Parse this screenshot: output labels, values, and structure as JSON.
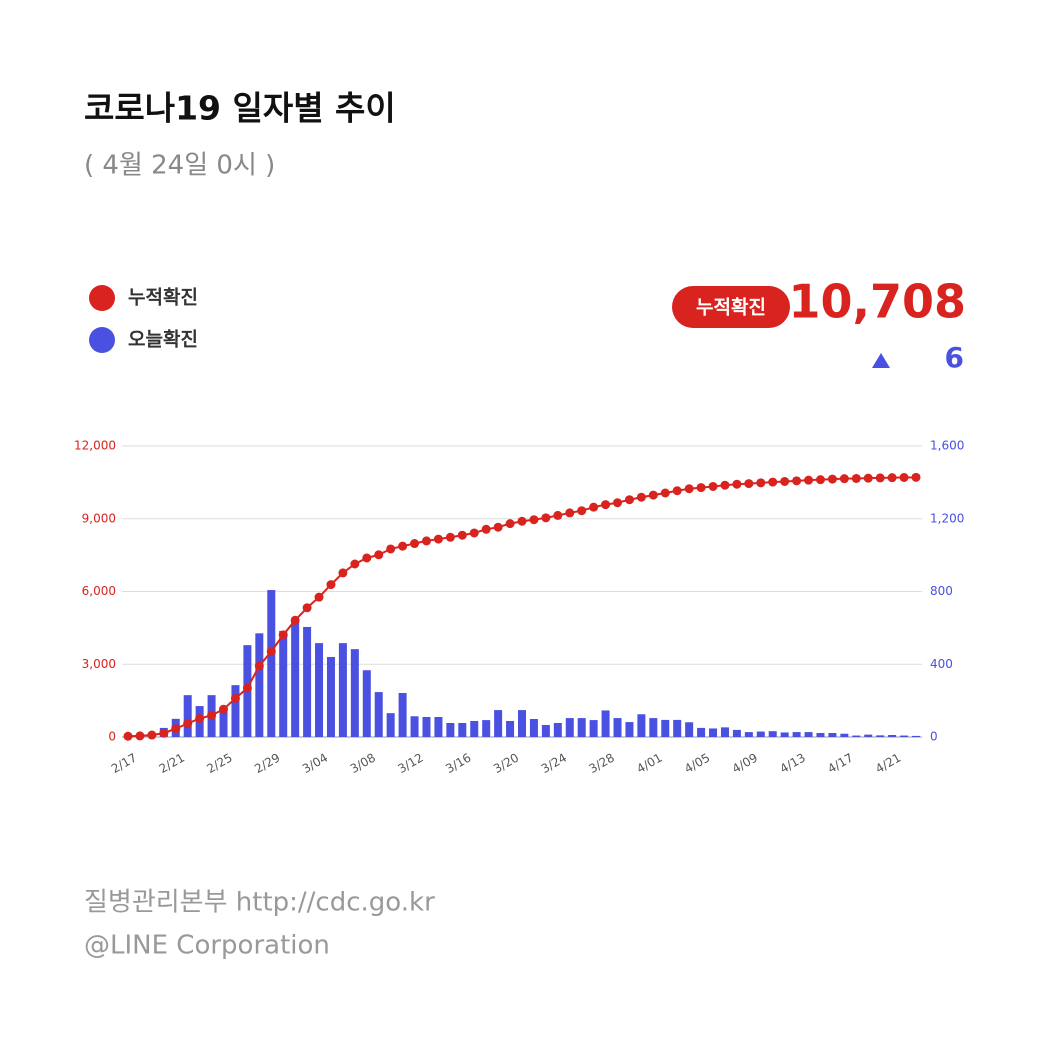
{
  "header": {
    "title": "코로나19 일자별 추이",
    "subtitle": "( 4월 24일 0시 )",
    "total_badge": "누적확진",
    "total": "10,708",
    "change": "6"
  },
  "chart_data": {
    "type": "combo",
    "categories": [
      "2/17",
      null,
      null,
      null,
      "2/21",
      null,
      null,
      null,
      "2/25",
      null,
      null,
      null,
      "2/29",
      null,
      null,
      null,
      "3/04",
      null,
      null,
      null,
      "3/08",
      null,
      null,
      null,
      "3/12",
      null,
      null,
      null,
      "3/16",
      null,
      null,
      null,
      "3/20",
      null,
      null,
      null,
      "3/24",
      null,
      null,
      null,
      "3/28",
      null,
      null,
      null,
      "4/01",
      null,
      null,
      null,
      "4/05",
      null,
      null,
      null,
      "4/09",
      null,
      null,
      null,
      "4/13",
      null,
      null,
      null,
      "4/17",
      null,
      null,
      null,
      "4/21",
      null,
      null
    ],
    "series": [
      {
        "name": "누적확진",
        "type": "line",
        "color": "#d8231f",
        "values": [
          31,
          46,
          82,
          156,
          346,
          556,
          763,
          893,
          1146,
          1595,
          2022,
          2931,
          3526,
          4212,
          4812,
          5328,
          5766,
          6284,
          6767,
          7134,
          7382,
          7513,
          7755,
          7869,
          7979,
          8086,
          8162,
          8236,
          8320,
          8413,
          8565,
          8652,
          8799,
          8897,
          8961,
          9037,
          9137,
          9241,
          9332,
          9478,
          9583,
          9661,
          9786,
          9887,
          9976,
          10062,
          10156,
          10237,
          10284,
          10331,
          10384,
          10423,
          10450,
          10480,
          10512,
          10537,
          10564,
          10591,
          10613,
          10635,
          10653,
          10661,
          10674,
          10683,
          10694,
          10702,
          10708
        ]
      },
      {
        "name": "오늘확진",
        "type": "bar",
        "axis": "y2",
        "color": "#4a50e0",
        "values": [
          1,
          1,
          15,
          50,
          100,
          230,
          170,
          230,
          145,
          285,
          505,
          570,
          808,
          583,
          632,
          605,
          516,
          440,
          516,
          483,
          367,
          247,
          131,
          242,
          114,
          110,
          110,
          77,
          77,
          88,
          93,
          148,
          88,
          148,
          99,
          66,
          77,
          104,
          104,
          93,
          146,
          104,
          82,
          125,
          104,
          94,
          94,
          81,
          50,
          47,
          53,
          39,
          27,
          30,
          32,
          25,
          27,
          27,
          22,
          22,
          18,
          8,
          13,
          9,
          11,
          8,
          6
        ]
      }
    ],
    "ylim": [
      0,
      12000
    ],
    "yticks": [
      0,
      {
        "value": 3000,
        "label": "3,000"
      },
      {
        "value": 6000,
        "label": "6,000"
      },
      {
        "value": 9000,
        "label": "9,000"
      },
      {
        "value": 12000,
        "label": "12,000"
      }
    ],
    "y2lim": [
      0,
      1600
    ],
    "y2ticks": [
      0,
      400,
      800,
      {
        "value": 1200,
        "label": "1,200"
      },
      {
        "value": 1600,
        "label": "1,600"
      }
    ],
    "grid": true
  },
  "footer": {
    "source": "질병관리본부 http://cdc.go.kr",
    "credit": "@LINE Corporation"
  }
}
